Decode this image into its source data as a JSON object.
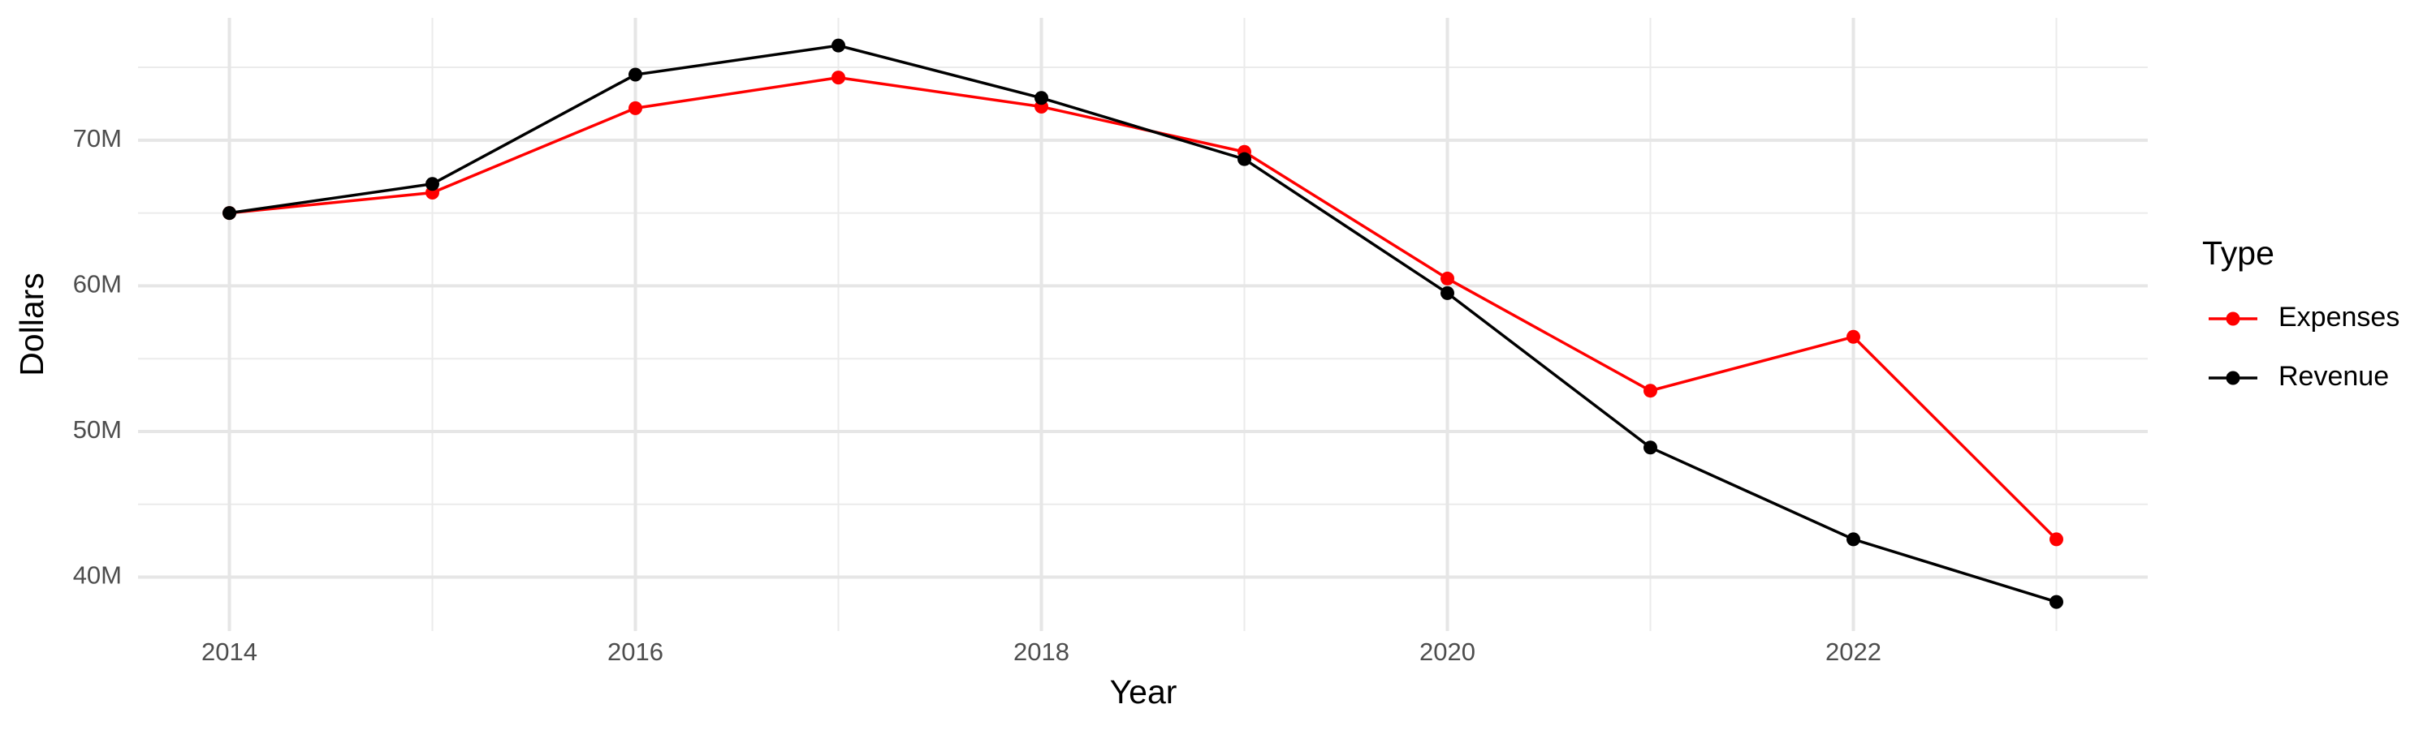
{
  "chart_data": {
    "type": "line",
    "x_label": "Year",
    "y_label": "Dollars",
    "x": [
      2014,
      2015,
      2016,
      2017,
      2018,
      2019,
      2020,
      2021,
      2022,
      2023
    ],
    "series": [
      {
        "name": "Expenses",
        "color": "#ff0000",
        "values": [
          65000000,
          66400000,
          72200000,
          74300000,
          72300000,
          69200000,
          60500000,
          52800000,
          56500000,
          42600000
        ]
      },
      {
        "name": "Revenue",
        "color": "#000000",
        "values": [
          65000000,
          67000000,
          74500000,
          76500000,
          72900000,
          68700000,
          59500000,
          48900000,
          42600000,
          38300000
        ]
      }
    ],
    "xlim": [
      2013.55,
      2023.45
    ],
    "ylim": [
      36300000,
      78400000
    ],
    "xticks": [
      2014,
      2016,
      2018,
      2020,
      2022
    ],
    "x_minor_ticks": [
      2015,
      2017,
      2019,
      2021,
      2023
    ],
    "yticks": [
      {
        "value": 40000000,
        "label": "40M"
      },
      {
        "value": 50000000,
        "label": "50M"
      },
      {
        "value": 60000000,
        "label": "60M"
      },
      {
        "value": 70000000,
        "label": "70M"
      }
    ],
    "y_minor_ticks": [
      45000000,
      55000000,
      65000000,
      75000000
    ],
    "grid": true,
    "legend_title": "Type",
    "legend_position": "right"
  }
}
